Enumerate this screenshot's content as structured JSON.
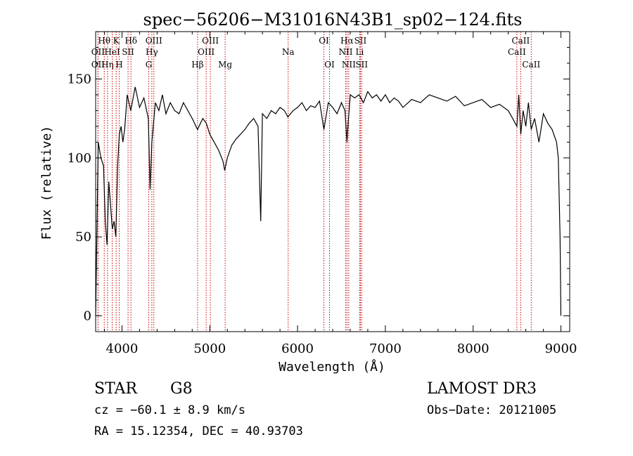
{
  "chart_data": {
    "type": "line",
    "title": "spec−56206−M31016N43B1_sp02−124.fits",
    "xlabel": "Wavelength (Å)",
    "ylabel": "Flux (relative)",
    "xlim": [
      3700,
      9100
    ],
    "ylim": [
      -10,
      180
    ],
    "xticks": [
      4000,
      5000,
      6000,
      7000,
      8000,
      9000
    ],
    "xtick_labels": [
      "4000",
      "5000",
      "6000",
      "7000",
      "8000",
      "9000"
    ],
    "yticks": [
      0,
      50,
      100,
      150
    ],
    "ytick_labels": [
      "0",
      "50",
      "100",
      "150"
    ],
    "series": [
      {
        "name": "flux",
        "x": [
          3700,
          3730,
          3760,
          3790,
          3810,
          3830,
          3850,
          3870,
          3890,
          3910,
          3930,
          3950,
          3970,
          3990,
          4010,
          4030,
          4060,
          4100,
          4150,
          4200,
          4250,
          4300,
          4320,
          4340,
          4380,
          4420,
          4460,
          4500,
          4550,
          4600,
          4650,
          4700,
          4750,
          4800,
          4860,
          4920,
          4960,
          5000,
          5050,
          5100,
          5150,
          5170,
          5200,
          5250,
          5300,
          5350,
          5400,
          5450,
          5500,
          5550,
          5580,
          5600,
          5650,
          5700,
          5750,
          5800,
          5850,
          5890,
          5950,
          6000,
          6050,
          6100,
          6150,
          6200,
          6250,
          6300,
          6350,
          6400,
          6450,
          6500,
          6540,
          6563,
          6580,
          6600,
          6650,
          6700,
          6750,
          6800,
          6850,
          6900,
          6950,
          7000,
          7050,
          7100,
          7150,
          7200,
          7300,
          7400,
          7500,
          7600,
          7700,
          7800,
          7900,
          8000,
          8100,
          8200,
          8300,
          8400,
          8450,
          8498,
          8520,
          8542,
          8570,
          8600,
          8630,
          8662,
          8700,
          8750,
          8800,
          8850,
          8900,
          8950,
          8970,
          8990,
          9000
        ],
        "y": [
          0,
          110,
          100,
          95,
          60,
          45,
          85,
          70,
          55,
          60,
          50,
          95,
          115,
          120,
          110,
          118,
          140,
          130,
          145,
          132,
          138,
          125,
          80,
          110,
          135,
          130,
          140,
          128,
          135,
          130,
          128,
          135,
          130,
          125,
          118,
          125,
          122,
          115,
          110,
          105,
          98,
          92,
          100,
          108,
          112,
          115,
          118,
          122,
          125,
          120,
          60,
          128,
          125,
          130,
          128,
          132,
          130,
          126,
          130,
          132,
          135,
          130,
          133,
          132,
          136,
          118,
          135,
          132,
          128,
          135,
          130,
          110,
          125,
          140,
          138,
          140,
          135,
          142,
          138,
          140,
          136,
          140,
          135,
          138,
          136,
          132,
          137,
          135,
          140,
          138,
          136,
          139,
          133,
          135,
          137,
          132,
          134,
          130,
          125,
          120,
          140,
          115,
          130,
          120,
          135,
          118,
          125,
          110,
          128,
          122,
          118,
          110,
          100,
          50,
          0
        ]
      }
    ],
    "line_markers": [
      {
        "label": "OΙΙ",
        "wavelength": 3727,
        "row": 2
      },
      {
        "label": "OΙΙ",
        "wavelength": 3727,
        "row": 3
      },
      {
        "label": "Hθ",
        "wavelength": 3798,
        "row": 1
      },
      {
        "label": "Hη",
        "wavelength": 3835,
        "row": 3
      },
      {
        "label": "HeI",
        "wavelength": 3889,
        "row": 2
      },
      {
        "label": "K",
        "wavelength": 3934,
        "row": 1
      },
      {
        "label": "SII",
        "wavelength": 4069,
        "row": 2
      },
      {
        "label": "H",
        "wavelength": 3968,
        "row": 3
      },
      {
        "label": "Hδ",
        "wavelength": 4102,
        "row": 1
      },
      {
        "label": "OIII",
        "wavelength": 4363,
        "row": 1
      },
      {
        "label": "Hγ",
        "wavelength": 4340,
        "row": 2
      },
      {
        "label": "G",
        "wavelength": 4305,
        "row": 3
      },
      {
        "label": "OIII",
        "wavelength": 5007,
        "row": 1
      },
      {
        "label": "OIII",
        "wavelength": 4959,
        "row": 2
      },
      {
        "label": "Hβ",
        "wavelength": 4861,
        "row": 3
      },
      {
        "label": "Mg",
        "wavelength": 5175,
        "row": 3
      },
      {
        "label": "Na",
        "wavelength": 5893,
        "row": 2
      },
      {
        "label": "OI",
        "wavelength": 6300,
        "row": 1
      },
      {
        "label": "OI",
        "wavelength": 6364,
        "row": 3
      },
      {
        "label": "Hα",
        "wavelength": 6563,
        "row": 1
      },
      {
        "label": "SII",
        "wavelength": 6716,
        "row": 1
      },
      {
        "label": "NII",
        "wavelength": 6548,
        "row": 2
      },
      {
        "label": "Li",
        "wavelength": 6708,
        "row": 2
      },
      {
        "label": "NII",
        "wavelength": 6583,
        "row": 3
      },
      {
        "label": "SII",
        "wavelength": 6731,
        "row": 3
      },
      {
        "label": "CaII",
        "wavelength": 8542,
        "row": 1
      },
      {
        "label": "CaII",
        "wavelength": 8498,
        "row": 2
      },
      {
        "label": "CaII",
        "wavelength": 8662,
        "row": 3
      }
    ],
    "marker_color": "#cc0000",
    "line_color": "#000000",
    "grid": false
  },
  "info": {
    "object_class": "STAR",
    "subclass": "G8",
    "survey": "LAMOST DR3",
    "cz": "cz = −60.1 ± 8.9 km/s",
    "obs_date": "Obs−Date: 20121005",
    "coords": "RA =  15.12354, DEC =  40.93703"
  }
}
